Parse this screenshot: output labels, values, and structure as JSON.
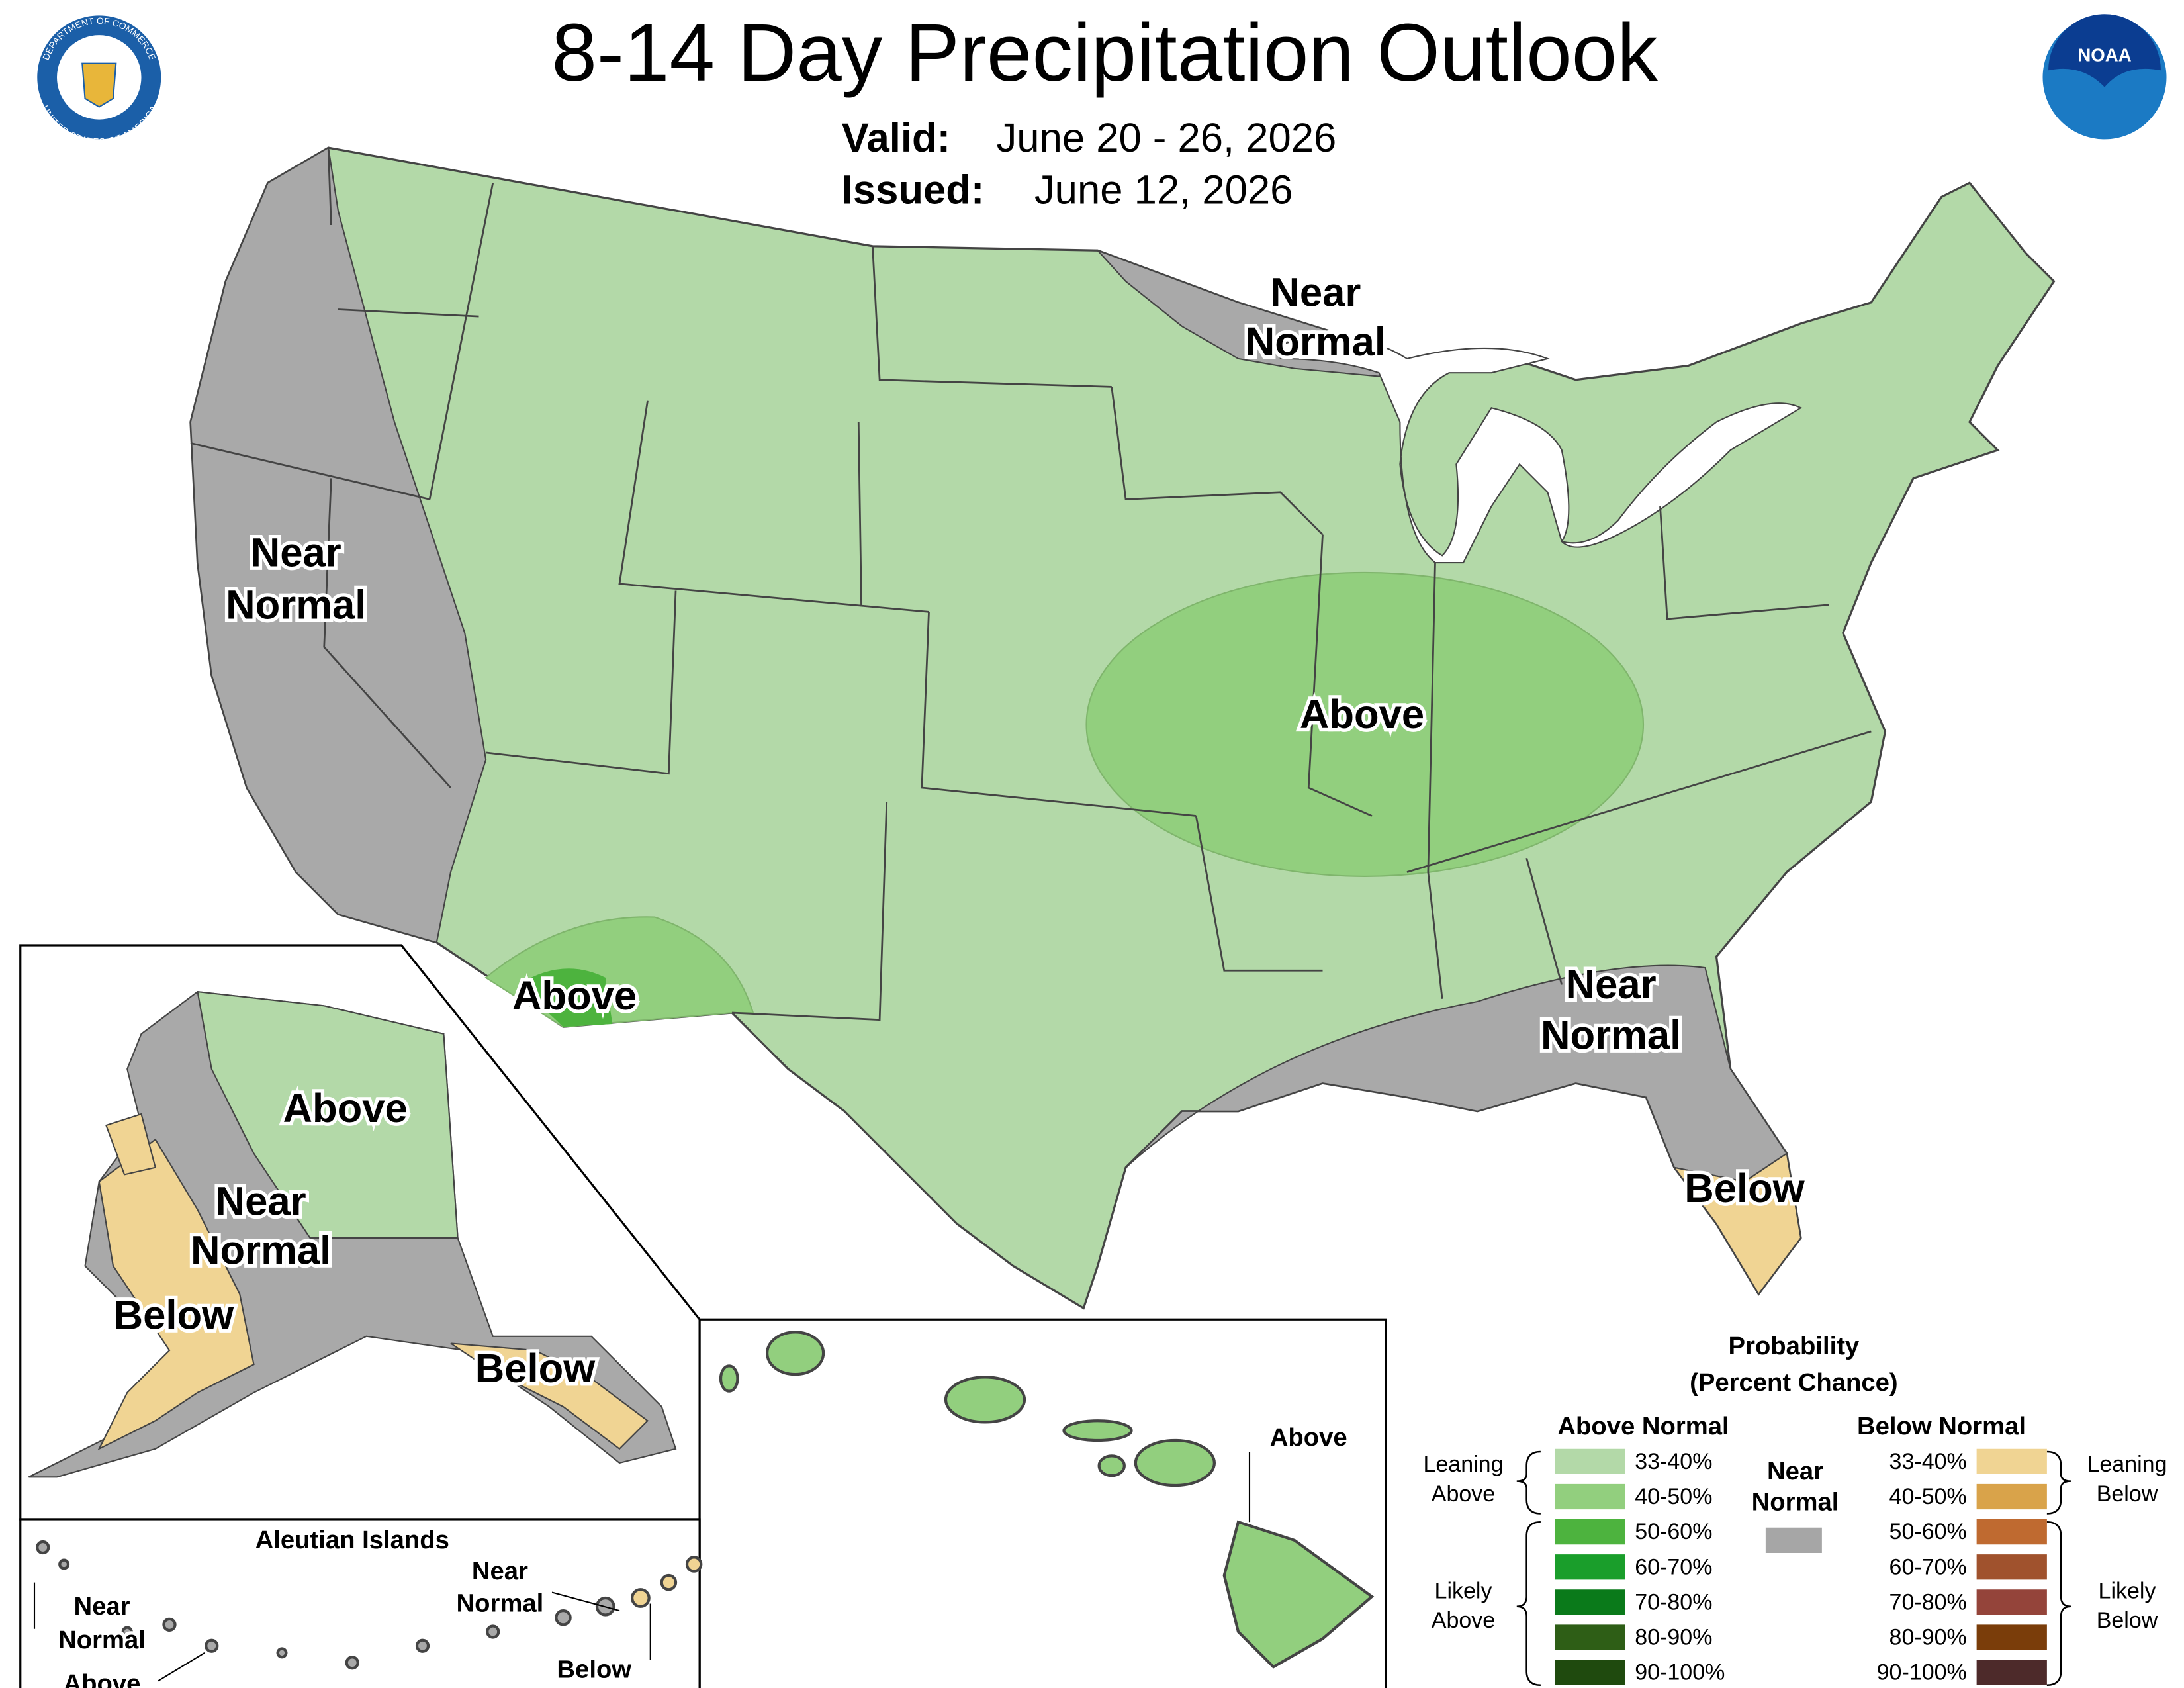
{
  "header": {
    "title": "8-14 Day Precipitation Outlook",
    "valid_label": "Valid:",
    "valid": "June 20 - 26, 2026",
    "issued_label": "Issued:",
    "issued": "June 12, 2026"
  },
  "logos": {
    "noaa": "NOAA",
    "commerce_top": "DEPARTMENT OF COMMERCE",
    "commerce_bottom": "UNITED STATES OF AMERICA"
  },
  "map_labels": [
    {
      "lines": [
        "Near",
        "Normal"
      ]
    },
    {
      "lines": [
        "Near",
        "Normal"
      ]
    },
    {
      "lines": [
        "Above"
      ]
    },
    {
      "lines": [
        "Above"
      ]
    },
    {
      "lines": [
        "Near",
        "Normal"
      ]
    },
    {
      "lines": [
        "Below"
      ]
    },
    {
      "lines": [
        "Above"
      ]
    },
    {
      "lines": [
        "Near",
        "Normal"
      ]
    },
    {
      "lines": [
        "Below"
      ]
    },
    {
      "lines": [
        "Below"
      ]
    },
    {
      "lines": [
        "Above"
      ]
    },
    {
      "lines": [
        "Aleutian Islands"
      ]
    },
    {
      "lines": [
        "Near",
        "Normal"
      ]
    },
    {
      "lines": [
        "Above"
      ]
    },
    {
      "lines": [
        "Near",
        "Normal"
      ]
    },
    {
      "lines": [
        "Below"
      ]
    }
  ],
  "legend": {
    "title_lines": [
      "Probability",
      "(Percent Chance)"
    ],
    "above_title": "Above Normal",
    "below_title": "Below Normal",
    "near_title": [
      "Near",
      "Normal"
    ],
    "near_color": "#a6a6a6",
    "above": [
      {
        "label": "33-40%",
        "color": "#b3d9a8"
      },
      {
        "label": "40-50%",
        "color": "#92cf7e"
      },
      {
        "label": "50-60%",
        "color": "#4db33e"
      },
      {
        "label": "60-70%",
        "color": "#1a9e2b"
      },
      {
        "label": "70-80%",
        "color": "#0a7a1a"
      },
      {
        "label": "80-90%",
        "color": "#2e5e16"
      },
      {
        "label": "90-100%",
        "color": "#1f4a0e"
      }
    ],
    "below": [
      {
        "label": "33-40%",
        "color": "#f0d493"
      },
      {
        "label": "40-50%",
        "color": "#d9a34a"
      },
      {
        "label": "50-60%",
        "color": "#bf6a30"
      },
      {
        "label": "60-70%",
        "color": "#a0522d"
      },
      {
        "label": "70-80%",
        "color": "#94443a"
      },
      {
        "label": "80-90%",
        "color": "#7a3d0a"
      },
      {
        "label": "90-100%",
        "color": "#4d2a2a"
      }
    ],
    "brackets": {
      "leaning_above": [
        "Leaning",
        "Above"
      ],
      "likely_above": [
        "Likely",
        "Above"
      ],
      "leaning_below": [
        "Leaning",
        "Below"
      ],
      "likely_below": [
        "Likely",
        "Below"
      ]
    }
  }
}
